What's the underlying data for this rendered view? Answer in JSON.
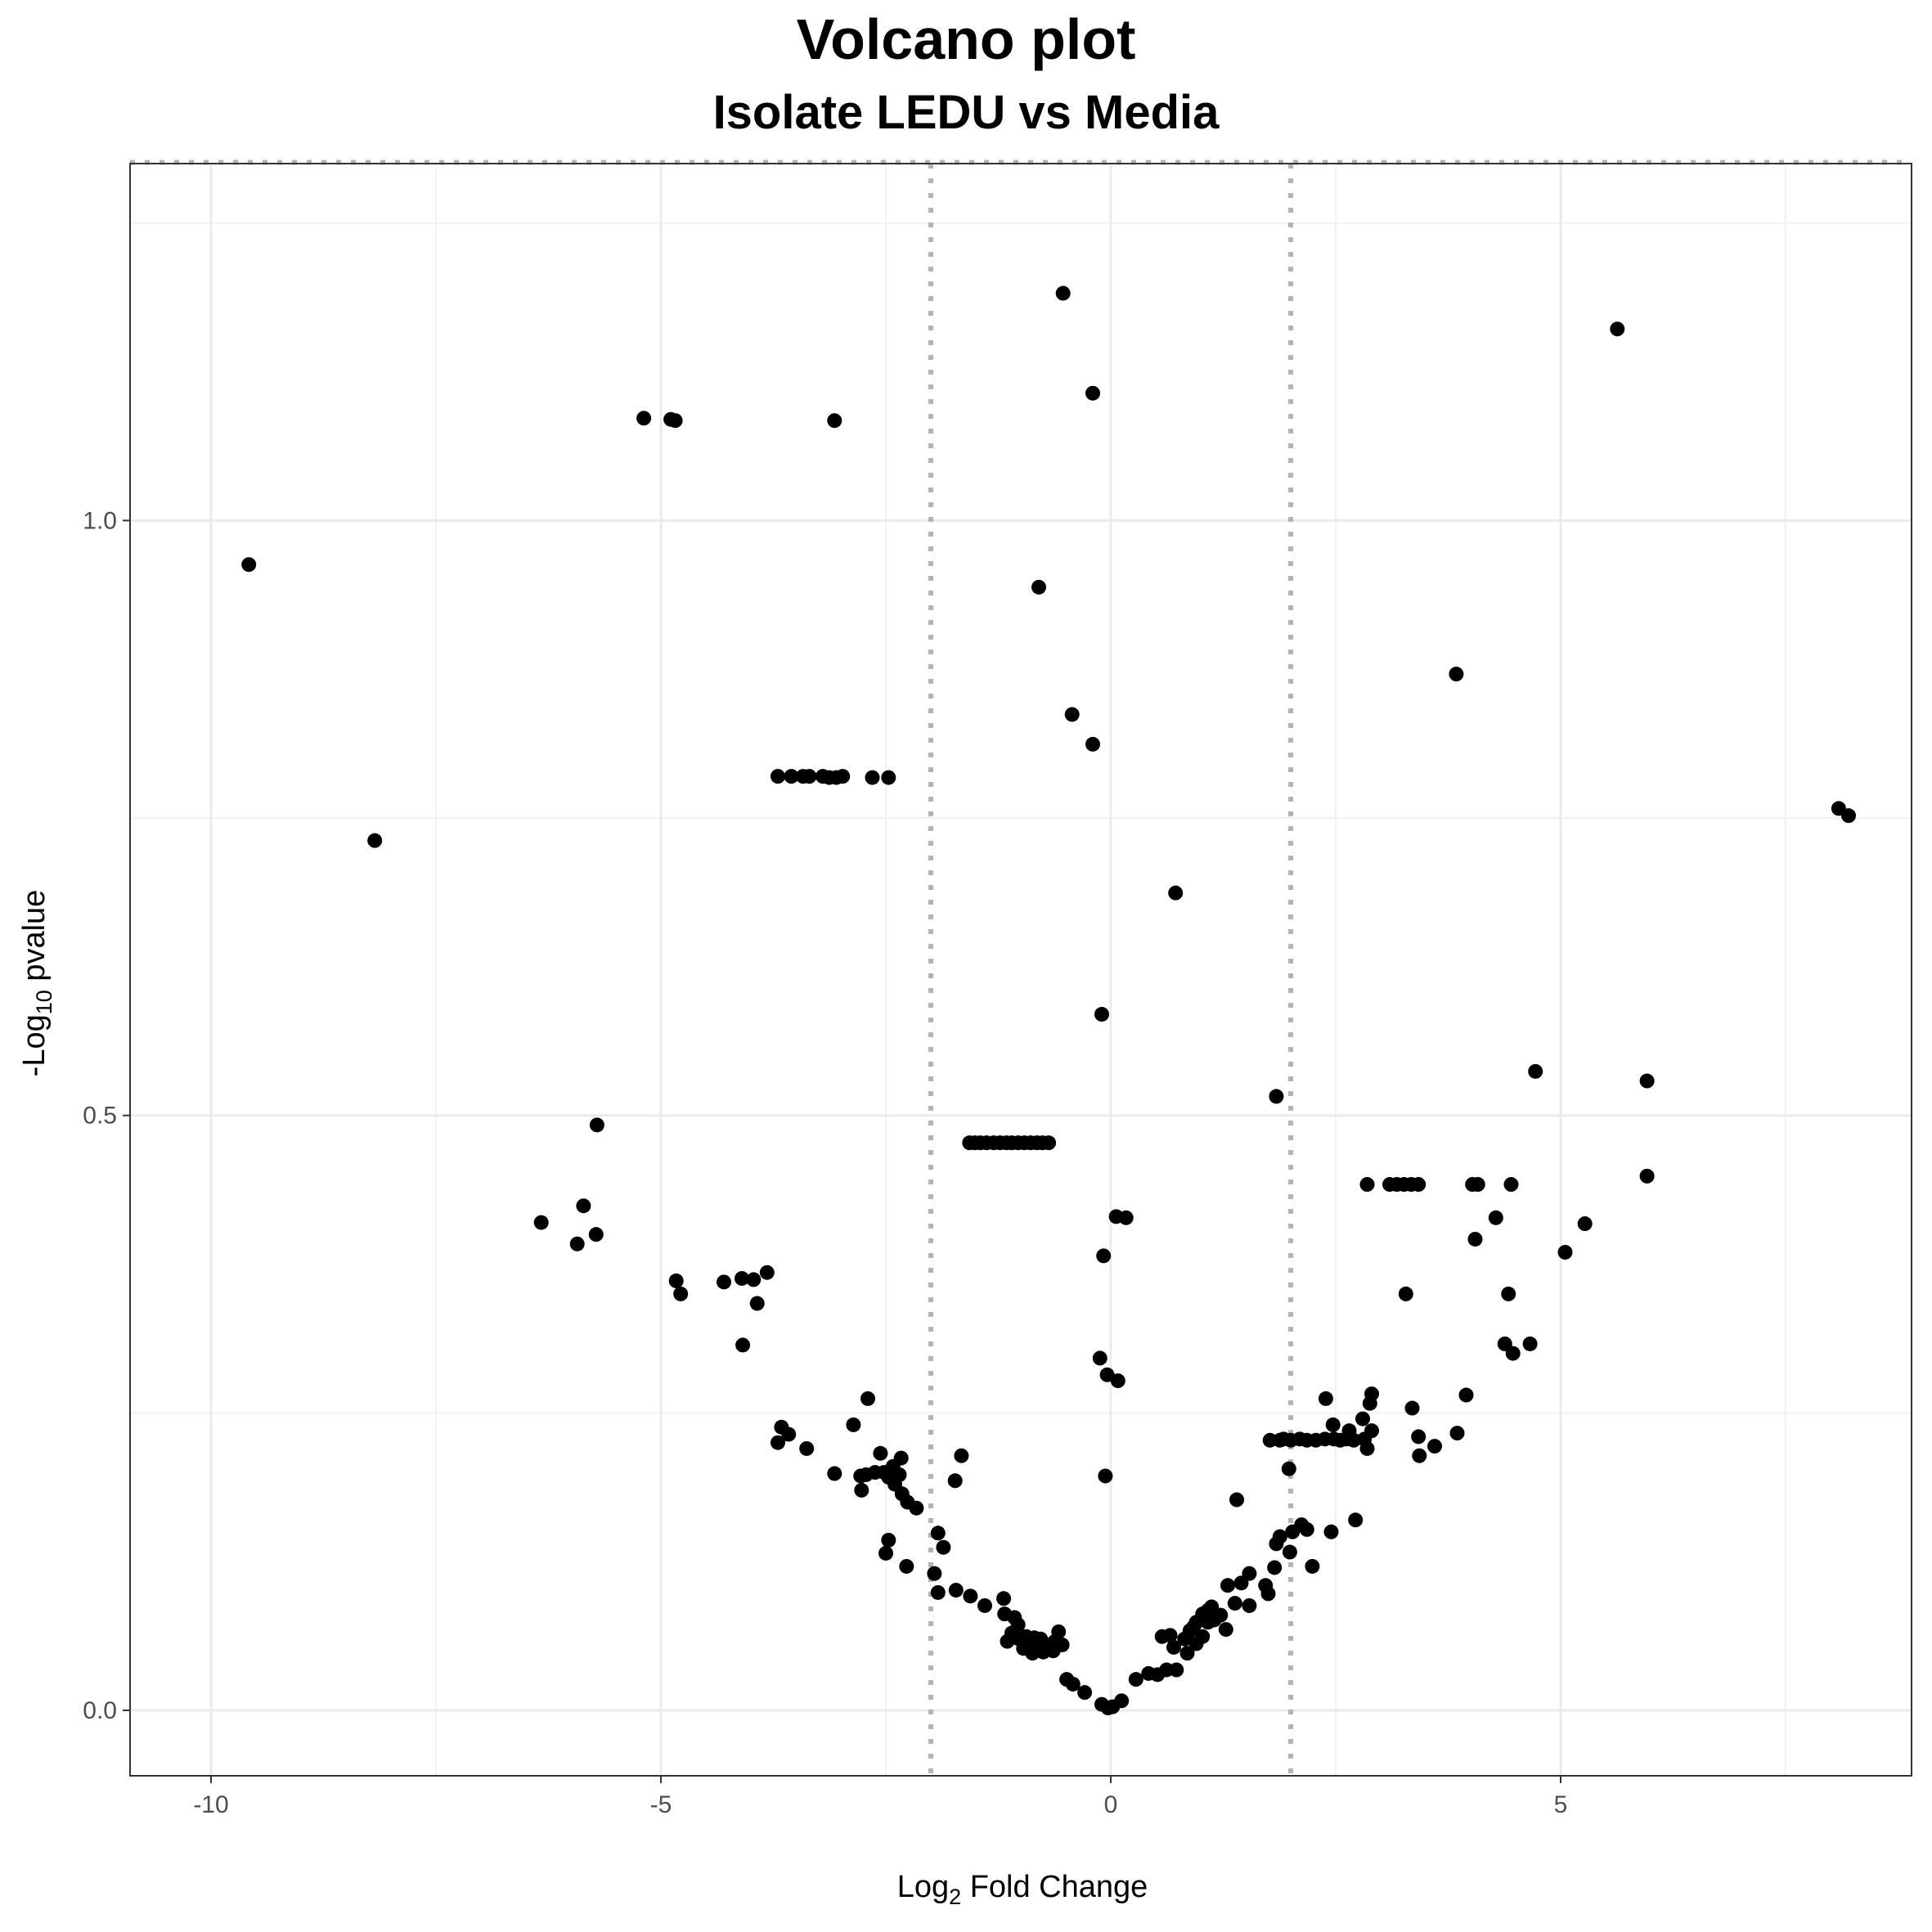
{
  "chart_data": {
    "type": "scatter",
    "title": "Volcano plot",
    "subtitle": "Isolate LEDU vs Media",
    "xlabel": {
      "prefix": "Log",
      "subscript": "2",
      "suffix": " Fold Change"
    },
    "ylabel": {
      "prefix": "-Log",
      "subscript": "10",
      "suffix": " pvalue"
    },
    "xlim": [
      -10.9,
      8.9
    ],
    "ylim": [
      -0.055,
      1.3
    ],
    "x_ticks": [
      -10,
      -5,
      0,
      5
    ],
    "x_tick_labels": [
      "-10",
      "-5",
      "0",
      "5"
    ],
    "y_ticks": [
      0.0,
      0.5,
      1.0
    ],
    "y_tick_labels": [
      "0.0",
      "0.5",
      "1.0"
    ],
    "grid": true,
    "point_color": "#000000",
    "threshold_color": "#b3b3b3",
    "vertical_thresholds": [
      -2,
      2
    ],
    "horizontal_threshold": 1.301,
    "points": [
      [
        -9.58,
        0.963
      ],
      [
        -8.18,
        0.731
      ],
      [
        -5.19,
        1.086
      ],
      [
        -4.89,
        1.085
      ],
      [
        -4.84,
        1.084
      ],
      [
        -3.07,
        1.084
      ],
      [
        -0.53,
        1.191
      ],
      [
        -0.2,
        1.107
      ],
      [
        5.63,
        1.161
      ],
      [
        -0.8,
        0.944
      ],
      [
        3.84,
        0.871
      ],
      [
        -0.43,
        0.837
      ],
      [
        -0.2,
        0.812
      ],
      [
        8.09,
        0.758
      ],
      [
        8.2,
        0.752
      ],
      [
        0.72,
        0.687
      ],
      [
        -0.1,
        0.585
      ],
      [
        1.84,
        0.516
      ],
      [
        4.72,
        0.537
      ],
      [
        5.96,
        0.529
      ],
      [
        5.96,
        0.449
      ],
      [
        -3.7,
        0.785
      ],
      [
        -3.55,
        0.785
      ],
      [
        -3.42,
        0.785
      ],
      [
        -3.35,
        0.785
      ],
      [
        -3.2,
        0.785
      ],
      [
        -3.13,
        0.784
      ],
      [
        -3.05,
        0.784
      ],
      [
        -2.98,
        0.785
      ],
      [
        -2.65,
        0.784
      ],
      [
        -2.47,
        0.784
      ],
      [
        -5.71,
        0.492
      ],
      [
        -6.33,
        0.41
      ],
      [
        -5.86,
        0.424
      ],
      [
        -5.93,
        0.392
      ],
      [
        -5.72,
        0.4
      ],
      [
        -4.83,
        0.361
      ],
      [
        -4.78,
        0.35
      ],
      [
        -4.3,
        0.36
      ],
      [
        -4.1,
        0.363
      ],
      [
        -3.97,
        0.362
      ],
      [
        -3.82,
        0.368
      ],
      [
        -3.93,
        0.342
      ],
      [
        -4.09,
        0.307
      ],
      [
        -3.7,
        0.225
      ],
      [
        -3.66,
        0.238
      ],
      [
        -3.58,
        0.232
      ],
      [
        -3.38,
        0.22
      ],
      [
        -3.07,
        0.199
      ],
      [
        -2.86,
        0.24
      ],
      [
        -2.7,
        0.262
      ],
      [
        -2.77,
        0.185
      ],
      [
        -2.78,
        0.197
      ],
      [
        -2.72,
        0.198
      ],
      [
        -2.62,
        0.2
      ],
      [
        -2.56,
        0.216
      ],
      [
        -2.52,
        0.2
      ],
      [
        -2.47,
        0.196
      ],
      [
        -2.42,
        0.205
      ],
      [
        -2.35,
        0.198
      ],
      [
        -2.33,
        0.212
      ],
      [
        -2.4,
        0.19
      ],
      [
        -2.32,
        0.182
      ],
      [
        -2.26,
        0.175
      ],
      [
        -2.16,
        0.17
      ],
      [
        -2.47,
        0.143
      ],
      [
        -2.5,
        0.132
      ],
      [
        -2.27,
        0.121
      ],
      [
        -1.92,
        0.149
      ],
      [
        -1.86,
        0.137
      ],
      [
        -1.96,
        0.115
      ],
      [
        -1.92,
        0.099
      ],
      [
        -1.73,
        0.193
      ],
      [
        -1.66,
        0.214
      ],
      [
        -1.72,
        0.101
      ],
      [
        -1.56,
        0.096
      ],
      [
        -1.4,
        0.088
      ],
      [
        -1.19,
        0.094
      ],
      [
        -1.18,
        0.081
      ],
      [
        -1.07,
        0.078
      ],
      [
        -1.03,
        0.072
      ],
      [
        -1.1,
        0.065
      ],
      [
        -1.02,
        0.06
      ],
      [
        -0.94,
        0.062
      ],
      [
        -0.9,
        0.058
      ],
      [
        -0.85,
        0.061
      ],
      [
        -0.8,
        0.055
      ],
      [
        -0.78,
        0.06
      ],
      [
        -0.75,
        0.049
      ],
      [
        -0.7,
        0.055
      ],
      [
        -0.64,
        0.05
      ],
      [
        -0.62,
        0.058
      ],
      [
        -1.15,
        0.058
      ],
      [
        -0.97,
        0.052
      ],
      [
        -0.87,
        0.048
      ],
      [
        -0.54,
        0.055
      ],
      [
        -0.58,
        0.066
      ],
      [
        -0.49,
        0.026
      ],
      [
        -0.42,
        0.022
      ],
      [
        -0.29,
        0.015
      ],
      [
        -0.1,
        0.005
      ],
      [
        -0.03,
        0.002
      ],
      [
        0.02,
        0.003
      ],
      [
        0.12,
        0.008
      ],
      [
        0.28,
        0.026
      ],
      [
        0.42,
        0.031
      ],
      [
        0.52,
        0.03
      ],
      [
        0.62,
        0.034
      ],
      [
        0.73,
        0.034
      ],
      [
        0.57,
        0.062
      ],
      [
        0.66,
        0.063
      ],
      [
        0.7,
        0.053
      ],
      [
        0.82,
        0.06
      ],
      [
        0.88,
        0.067
      ],
      [
        0.92,
        0.07
      ],
      [
        0.95,
        0.074
      ],
      [
        0.85,
        0.048
      ],
      [
        0.95,
        0.056
      ],
      [
        1.02,
        0.081
      ],
      [
        1.08,
        0.084
      ],
      [
        1.12,
        0.087
      ],
      [
        1.15,
        0.076
      ],
      [
        1.08,
        0.074
      ],
      [
        1.02,
        0.062
      ],
      [
        1.22,
        0.08
      ],
      [
        1.3,
        0.105
      ],
      [
        1.28,
        0.068
      ],
      [
        1.38,
        0.09
      ],
      [
        1.45,
        0.107
      ],
      [
        1.54,
        0.115
      ],
      [
        1.54,
        0.088
      ],
      [
        1.72,
        0.105
      ],
      [
        1.75,
        0.098
      ],
      [
        1.82,
        0.12
      ],
      [
        1.84,
        0.14
      ],
      [
        1.88,
        0.146
      ],
      [
        1.99,
        0.133
      ],
      [
        2.02,
        0.15
      ],
      [
        2.12,
        0.156
      ],
      [
        2.18,
        0.152
      ],
      [
        2.24,
        0.121
      ],
      [
        2.45,
        0.15
      ],
      [
        2.72,
        0.16
      ],
      [
        1.4,
        0.177
      ],
      [
        1.98,
        0.203
      ],
      [
        1.77,
        0.227
      ],
      [
        1.88,
        0.227
      ],
      [
        1.92,
        0.228
      ],
      [
        2.0,
        0.227
      ],
      [
        2.1,
        0.228
      ],
      [
        2.18,
        0.227
      ],
      [
        2.28,
        0.227
      ],
      [
        2.38,
        0.228
      ],
      [
        2.48,
        0.228
      ],
      [
        2.55,
        0.227
      ],
      [
        2.62,
        0.228
      ],
      [
        2.7,
        0.227
      ],
      [
        2.82,
        0.228
      ],
      [
        2.47,
        0.24
      ],
      [
        2.65,
        0.235
      ],
      [
        2.8,
        0.245
      ],
      [
        2.9,
        0.235
      ],
      [
        2.88,
        0.258
      ],
      [
        2.9,
        0.266
      ],
      [
        2.85,
        0.22
      ],
      [
        2.39,
        0.262
      ],
      [
        2.85,
        0.442
      ],
      [
        3.1,
        0.442
      ],
      [
        3.18,
        0.442
      ],
      [
        3.26,
        0.442
      ],
      [
        3.34,
        0.442
      ],
      [
        3.42,
        0.442
      ],
      [
        3.28,
        0.35
      ],
      [
        3.35,
        0.254
      ],
      [
        3.42,
        0.23
      ],
      [
        3.43,
        0.214
      ],
      [
        3.6,
        0.222
      ],
      [
        3.85,
        0.233
      ],
      [
        3.95,
        0.265
      ],
      [
        4.02,
        0.442
      ],
      [
        4.08,
        0.442
      ],
      [
        4.45,
        0.442
      ],
      [
        4.05,
        0.396
      ],
      [
        4.28,
        0.414
      ],
      [
        4.42,
        0.35
      ],
      [
        4.38,
        0.308
      ],
      [
        4.47,
        0.3
      ],
      [
        4.66,
        0.308
      ],
      [
        5.05,
        0.385
      ],
      [
        5.27,
        0.409
      ],
      [
        -1.57,
        0.477
      ],
      [
        -1.51,
        0.477
      ],
      [
        -1.45,
        0.477
      ],
      [
        -1.38,
        0.477
      ],
      [
        -1.3,
        0.477
      ],
      [
        -1.23,
        0.477
      ],
      [
        -1.16,
        0.477
      ],
      [
        -1.1,
        0.477
      ],
      [
        -1.03,
        0.477
      ],
      [
        -0.96,
        0.477
      ],
      [
        -0.89,
        0.477
      ],
      [
        -0.82,
        0.477
      ],
      [
        -0.76,
        0.477
      ],
      [
        -0.69,
        0.477
      ],
      [
        0.06,
        0.415
      ],
      [
        0.17,
        0.414
      ],
      [
        -0.08,
        0.382
      ],
      [
        -0.12,
        0.296
      ],
      [
        -0.04,
        0.282
      ],
      [
        0.08,
        0.277
      ],
      [
        -0.06,
        0.197
      ]
    ]
  }
}
